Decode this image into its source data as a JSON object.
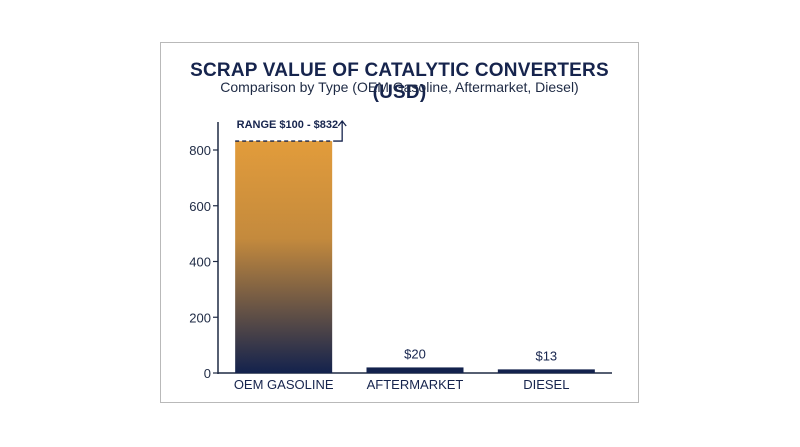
{
  "chart_data": {
    "type": "bar",
    "title": "SCRAP VALUE OF CATALYTIC CONVERTERS (USD)",
    "subtitle": "Comparison by Type (OEM Gasoline, Aftermarket, Diesel)",
    "categories": [
      "OEM GASOLINE",
      "AFTERMARKET",
      "DIESEL"
    ],
    "values": [
      832,
      20,
      13
    ],
    "data_labels": [
      "",
      "$20",
      "$13"
    ],
    "annotation": "RANGE $100 - $832",
    "yticks": [
      0,
      200,
      400,
      600,
      800
    ],
    "ylim": [
      0,
      900
    ],
    "grid": false,
    "colors": {
      "gradient_top": "#e29c3b",
      "gradient_bottom": "#13224d",
      "bar_dark": "#13224d",
      "text": "#16244d",
      "axis": "#1e2a44"
    }
  }
}
